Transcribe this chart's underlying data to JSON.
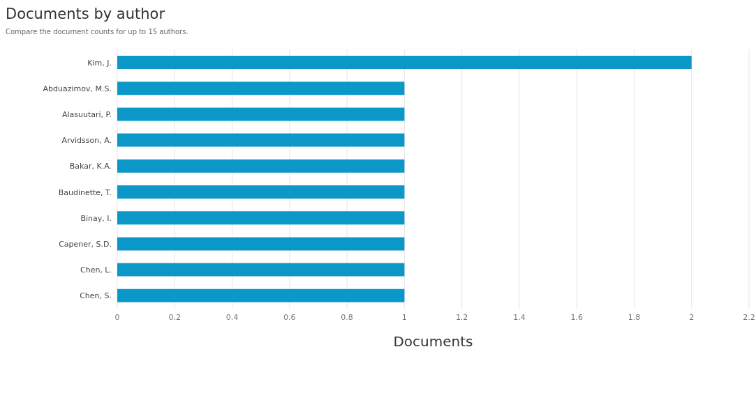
{
  "chart_data": {
    "type": "bar",
    "orientation": "horizontal",
    "title": "Documents by author",
    "subtitle": "Compare the document counts for up to 15 authors.",
    "xlabel": "Documents",
    "categories": [
      "Kim, J.",
      "Abduazimov, M.S.",
      "Alasuutari, P.",
      "Arvidsson, A.",
      "Bakar, K.A.",
      "Baudinette, T.",
      "Binay, I.",
      "Capener, S.D.",
      "Chen, L.",
      "Chen, S."
    ],
    "values": [
      2,
      1,
      1,
      1,
      1,
      1,
      1,
      1,
      1,
      1
    ],
    "color": "#0b98c8",
    "xlim": [
      0,
      2.2
    ],
    "xticks": [
      0,
      0.2,
      0.4,
      0.6,
      0.8,
      1,
      1.2,
      1.4,
      1.6,
      1.8,
      2,
      2.2
    ],
    "grid": "x"
  }
}
